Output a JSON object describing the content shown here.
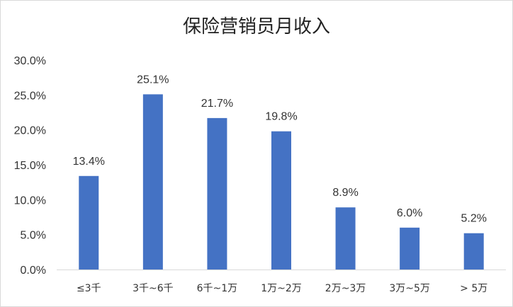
{
  "chart_data": {
    "type": "bar",
    "title": "保险营销员月收入",
    "xlabel": "",
    "ylabel": "",
    "categories": [
      "≤3千",
      "3千~6千",
      "6千~1万",
      "1万~2万",
      "2万~3万",
      "3万~5万",
      "> 5万"
    ],
    "values": [
      13.4,
      25.1,
      21.7,
      19.8,
      8.9,
      6.0,
      5.2
    ],
    "data_labels": [
      "13.4%",
      "25.1%",
      "21.7%",
      "19.8%",
      "8.9%",
      "6.0%",
      "5.2%"
    ],
    "ylim": [
      0,
      30
    ],
    "yticks": [
      0,
      5,
      10,
      15,
      20,
      25,
      30
    ],
    "ytick_labels": [
      "0.0%",
      "5.0%",
      "10.0%",
      "15.0%",
      "20.0%",
      "25.0%",
      "30.0%"
    ],
    "grid": false,
    "legend": "none",
    "bar_color": "#4472c4"
  }
}
